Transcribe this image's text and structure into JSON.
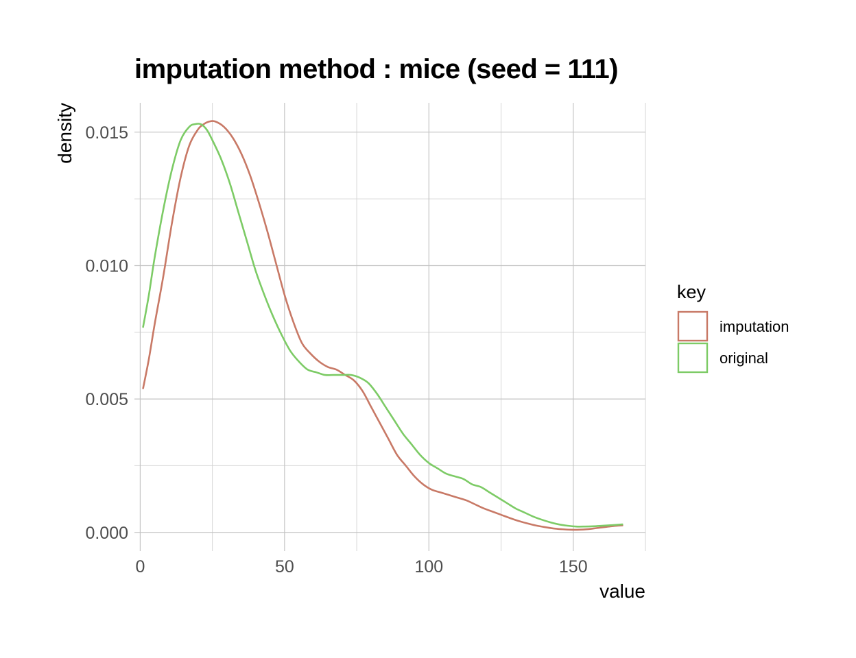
{
  "chart_data": {
    "type": "line",
    "title": "imputation method : mice (seed = 111)",
    "xlabel": "value",
    "ylabel": "density",
    "xlim": [
      -2,
      175
    ],
    "ylim": [
      -0.0007,
      0.0161
    ],
    "x_ticks": [
      0,
      50,
      100,
      150
    ],
    "x_tick_labels": [
      "0",
      "50",
      "100",
      "150"
    ],
    "x_minor_ticks": [
      25,
      75,
      125,
      175
    ],
    "y_ticks": [
      0,
      0.005,
      0.01,
      0.015
    ],
    "y_tick_labels": [
      "0.000",
      "0.005",
      "0.010",
      "0.015"
    ],
    "y_minor_ticks": [
      0.0025,
      0.0075,
      0.0125
    ],
    "grid": true,
    "legend": {
      "title": "key",
      "position": "right"
    },
    "series": [
      {
        "name": "imputation",
        "color": "#c87966",
        "x": [
          1,
          3,
          5,
          8,
          11,
          14,
          17,
          20,
          22,
          24,
          26,
          29,
          32,
          35,
          38,
          41,
          44,
          47,
          50,
          53,
          56,
          59,
          62,
          65,
          68,
          71,
          74,
          77,
          80,
          83,
          86,
          89,
          92,
          95,
          98,
          101,
          104,
          107,
          110,
          113,
          116,
          119,
          122,
          125,
          128,
          131,
          134,
          137,
          140,
          143,
          146,
          149,
          152,
          155,
          158,
          161,
          164,
          167
        ],
        "values": [
          0.0054,
          0.0065,
          0.0078,
          0.0096,
          0.0116,
          0.0133,
          0.0145,
          0.0151,
          0.0153,
          0.0154,
          0.0154,
          0.0152,
          0.0148,
          0.0142,
          0.0134,
          0.0124,
          0.0113,
          0.0101,
          0.0089,
          0.0079,
          0.0071,
          0.0067,
          0.0064,
          0.0062,
          0.0061,
          0.0059,
          0.0057,
          0.0053,
          0.0047,
          0.0041,
          0.0035,
          0.0029,
          0.0025,
          0.0021,
          0.0018,
          0.0016,
          0.0015,
          0.0014,
          0.0013,
          0.0012,
          0.00105,
          0.0009,
          0.00078,
          0.00066,
          0.00054,
          0.00043,
          0.00034,
          0.00026,
          0.0002,
          0.00015,
          0.00012,
          0.0001,
          0.0001,
          0.00012,
          0.00016,
          0.0002,
          0.00024,
          0.00026
        ]
      },
      {
        "name": "original",
        "color": "#7dcb66",
        "x": [
          1,
          3,
          5,
          8,
          11,
          14,
          17,
          19,
          21,
          23,
          25,
          28,
          31,
          34,
          37,
          40,
          43,
          46,
          49,
          52,
          55,
          58,
          61,
          64,
          67,
          70,
          73,
          76,
          79,
          82,
          85,
          88,
          91,
          94,
          97,
          100,
          103,
          106,
          109,
          112,
          115,
          118,
          121,
          124,
          127,
          130,
          133,
          136,
          139,
          142,
          145,
          148,
          151,
          154,
          157,
          160,
          163,
          167
        ],
        "values": [
          0.0077,
          0.0089,
          0.0103,
          0.0121,
          0.0136,
          0.0147,
          0.0152,
          0.0153,
          0.0153,
          0.0151,
          0.0147,
          0.014,
          0.0131,
          0.012,
          0.0109,
          0.0098,
          0.0089,
          0.0081,
          0.0074,
          0.0068,
          0.0064,
          0.0061,
          0.006,
          0.0059,
          0.0059,
          0.0059,
          0.0059,
          0.0058,
          0.0056,
          0.0052,
          0.0047,
          0.0042,
          0.0037,
          0.0033,
          0.0029,
          0.0026,
          0.0024,
          0.0022,
          0.0021,
          0.002,
          0.0018,
          0.0017,
          0.0015,
          0.0013,
          0.0011,
          0.0009,
          0.00075,
          0.0006,
          0.00048,
          0.00038,
          0.0003,
          0.00025,
          0.00022,
          0.00022,
          0.00023,
          0.00025,
          0.00027,
          0.0003
        ]
      }
    ]
  }
}
